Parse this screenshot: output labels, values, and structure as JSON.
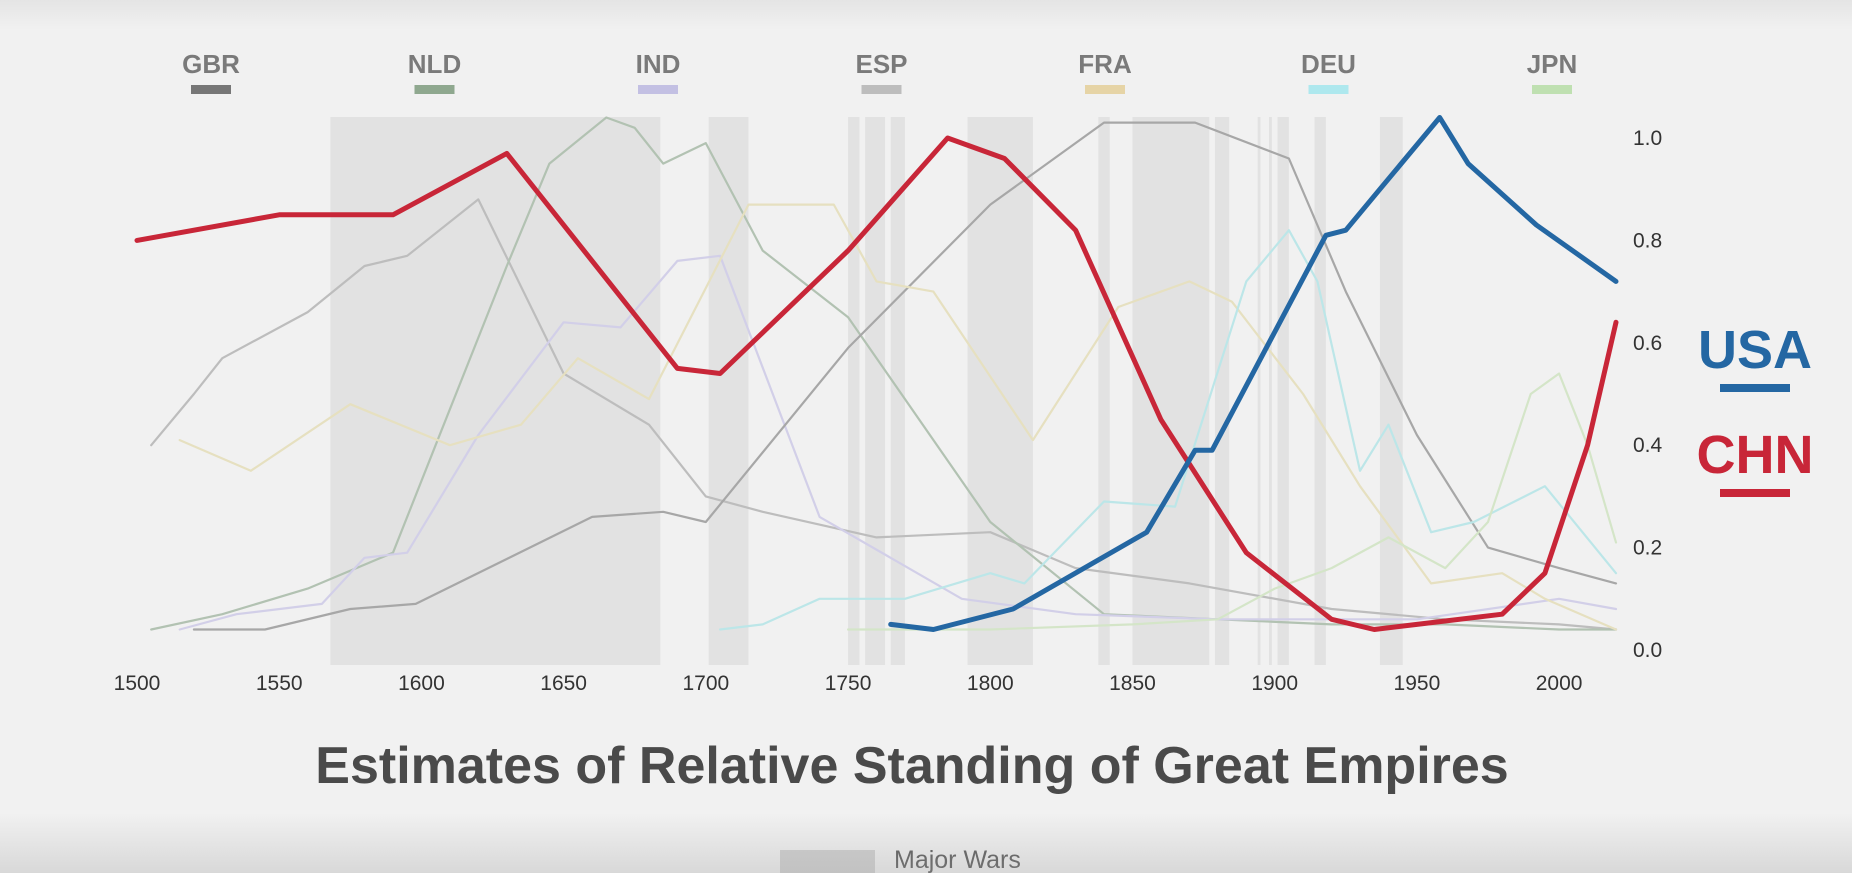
{
  "chart_data": {
    "type": "line",
    "title": "Estimates of Relative Standing of Great Empires",
    "xlim": [
      1500,
      2020
    ],
    "ylim": [
      0,
      1.0
    ],
    "x_ticks": [
      "1500",
      "1550",
      "1600",
      "1650",
      "1700",
      "1750",
      "1800",
      "1850",
      "1900",
      "1950",
      "2000"
    ],
    "y_ticks": [
      "0.0",
      "0.2",
      "0.4",
      "0.6",
      "0.8",
      "1.0"
    ],
    "grid": false,
    "wars_legend": "Major Wars",
    "major_wars": [
      [
        1568,
        1684
      ],
      [
        1701,
        1715
      ],
      [
        1750,
        1754
      ],
      [
        1756,
        1763
      ],
      [
        1765,
        1770
      ],
      [
        1792,
        1815
      ],
      [
        1838,
        1842
      ],
      [
        1850,
        1877
      ],
      [
        1879,
        1884
      ],
      [
        1894,
        1895
      ],
      [
        1898,
        1899
      ],
      [
        1901,
        1905
      ],
      [
        1914,
        1918
      ],
      [
        1937,
        1945
      ]
    ],
    "header_legend": [
      {
        "name": "GBR",
        "color": "#777777"
      },
      {
        "name": "NLD",
        "color": "#8fa88f"
      },
      {
        "name": "IND",
        "color": "#c3c0e3"
      },
      {
        "name": "ESP",
        "color": "#bdbdbd"
      },
      {
        "name": "FRA",
        "color": "#e6d4a6"
      },
      {
        "name": "DEU",
        "color": "#aee8ee"
      },
      {
        "name": "JPN",
        "color": "#bfe0b1"
      }
    ],
    "highlight_legend": [
      {
        "name": "USA",
        "color": "#2467a3"
      },
      {
        "name": "CHN",
        "color": "#c82638"
      }
    ],
    "series": [
      {
        "name": "CHN",
        "color": "#c82638",
        "highlight": true,
        "x": [
          1500,
          1550,
          1590,
          1630,
          1690,
          1705,
          1750,
          1785,
          1805,
          1830,
          1860,
          1890,
          1920,
          1935,
          1950,
          1980,
          1995,
          2010,
          2020
        ],
        "y": [
          0.8,
          0.85,
          0.85,
          0.97,
          0.55,
          0.54,
          0.78,
          1.0,
          0.96,
          0.82,
          0.45,
          0.19,
          0.06,
          0.04,
          0.05,
          0.07,
          0.15,
          0.4,
          0.64
        ]
      },
      {
        "name": "USA",
        "color": "#2467a3",
        "highlight": true,
        "x": [
          1765,
          1780,
          1808,
          1855,
          1872,
          1878,
          1918,
          1925,
          1937,
          1958,
          1968,
          1992,
          2020
        ],
        "y": [
          0.05,
          0.04,
          0.08,
          0.23,
          0.39,
          0.39,
          0.81,
          0.82,
          0.9,
          1.04,
          0.95,
          0.83,
          0.72
        ]
      },
      {
        "name": "ESP",
        "color": "#bdbdbd",
        "highlight": false,
        "x": [
          1505,
          1520,
          1530,
          1560,
          1580,
          1595,
          1620,
          1650,
          1680,
          1700,
          1720,
          1760,
          1800,
          1830,
          1870,
          1920,
          1960,
          2000,
          2020
        ],
        "y": [
          0.4,
          0.5,
          0.57,
          0.66,
          0.75,
          0.77,
          0.88,
          0.54,
          0.44,
          0.3,
          0.27,
          0.22,
          0.23,
          0.16,
          0.13,
          0.08,
          0.06,
          0.05,
          0.04
        ]
      },
      {
        "name": "NLD",
        "color": "#b2c2b2",
        "highlight": false,
        "x": [
          1505,
          1530,
          1560,
          1590,
          1605,
          1630,
          1645,
          1665,
          1675,
          1685,
          1700,
          1720,
          1750,
          1800,
          1840,
          1880,
          1920,
          1960,
          2000,
          2020
        ],
        "y": [
          0.04,
          0.07,
          0.12,
          0.19,
          0.4,
          0.75,
          0.95,
          1.04,
          1.02,
          0.95,
          0.99,
          0.78,
          0.65,
          0.25,
          0.07,
          0.06,
          0.05,
          0.05,
          0.04,
          0.04
        ]
      },
      {
        "name": "IND",
        "color": "#d2cfe8",
        "highlight": false,
        "x": [
          1515,
          1535,
          1565,
          1580,
          1595,
          1620,
          1650,
          1670,
          1690,
          1705,
          1740,
          1790,
          1830,
          1880,
          1950,
          2000,
          2020
        ],
        "y": [
          0.04,
          0.07,
          0.09,
          0.18,
          0.19,
          0.42,
          0.64,
          0.63,
          0.76,
          0.77,
          0.26,
          0.1,
          0.07,
          0.06,
          0.06,
          0.1,
          0.08
        ]
      },
      {
        "name": "GBR",
        "color": "#a7a7a7",
        "highlight": false,
        "x": [
          1520,
          1545,
          1575,
          1598,
          1660,
          1685,
          1700,
          1750,
          1800,
          1840,
          1872,
          1905,
          1925,
          1950,
          1975,
          2000,
          2020
        ],
        "y": [
          0.04,
          0.04,
          0.08,
          0.09,
          0.26,
          0.27,
          0.25,
          0.59,
          0.87,
          1.03,
          1.03,
          0.96,
          0.7,
          0.42,
          0.2,
          0.16,
          0.13
        ]
      },
      {
        "name": "FRA",
        "color": "#e6e0c0",
        "highlight": false,
        "x": [
          1515,
          1540,
          1575,
          1610,
          1635,
          1655,
          1680,
          1715,
          1745,
          1760,
          1780,
          1815,
          1845,
          1870,
          1885,
          1910,
          1930,
          1955,
          1980,
          1995,
          2020
        ],
        "y": [
          0.41,
          0.35,
          0.48,
          0.4,
          0.44,
          0.57,
          0.49,
          0.87,
          0.87,
          0.72,
          0.7,
          0.41,
          0.67,
          0.72,
          0.68,
          0.5,
          0.32,
          0.13,
          0.15,
          0.1,
          0.04
        ]
      },
      {
        "name": "DEU",
        "color": "#bce6e8",
        "highlight": false,
        "x": [
          1705,
          1720,
          1740,
          1770,
          1800,
          1812,
          1840,
          1865,
          1890,
          1905,
          1915,
          1930,
          1940,
          1955,
          1970,
          1995,
          2020
        ],
        "y": [
          0.04,
          0.05,
          0.1,
          0.1,
          0.15,
          0.13,
          0.29,
          0.28,
          0.72,
          0.82,
          0.72,
          0.35,
          0.44,
          0.23,
          0.25,
          0.32,
          0.15
        ]
      },
      {
        "name": "JPN",
        "color": "#d4e5c8",
        "highlight": false,
        "x": [
          1750,
          1800,
          1850,
          1880,
          1900,
          1920,
          1940,
          1960,
          1975,
          1990,
          2000,
          2010,
          2020
        ],
        "y": [
          0.04,
          0.04,
          0.05,
          0.06,
          0.12,
          0.16,
          0.22,
          0.16,
          0.25,
          0.5,
          0.54,
          0.4,
          0.21
        ]
      }
    ]
  }
}
